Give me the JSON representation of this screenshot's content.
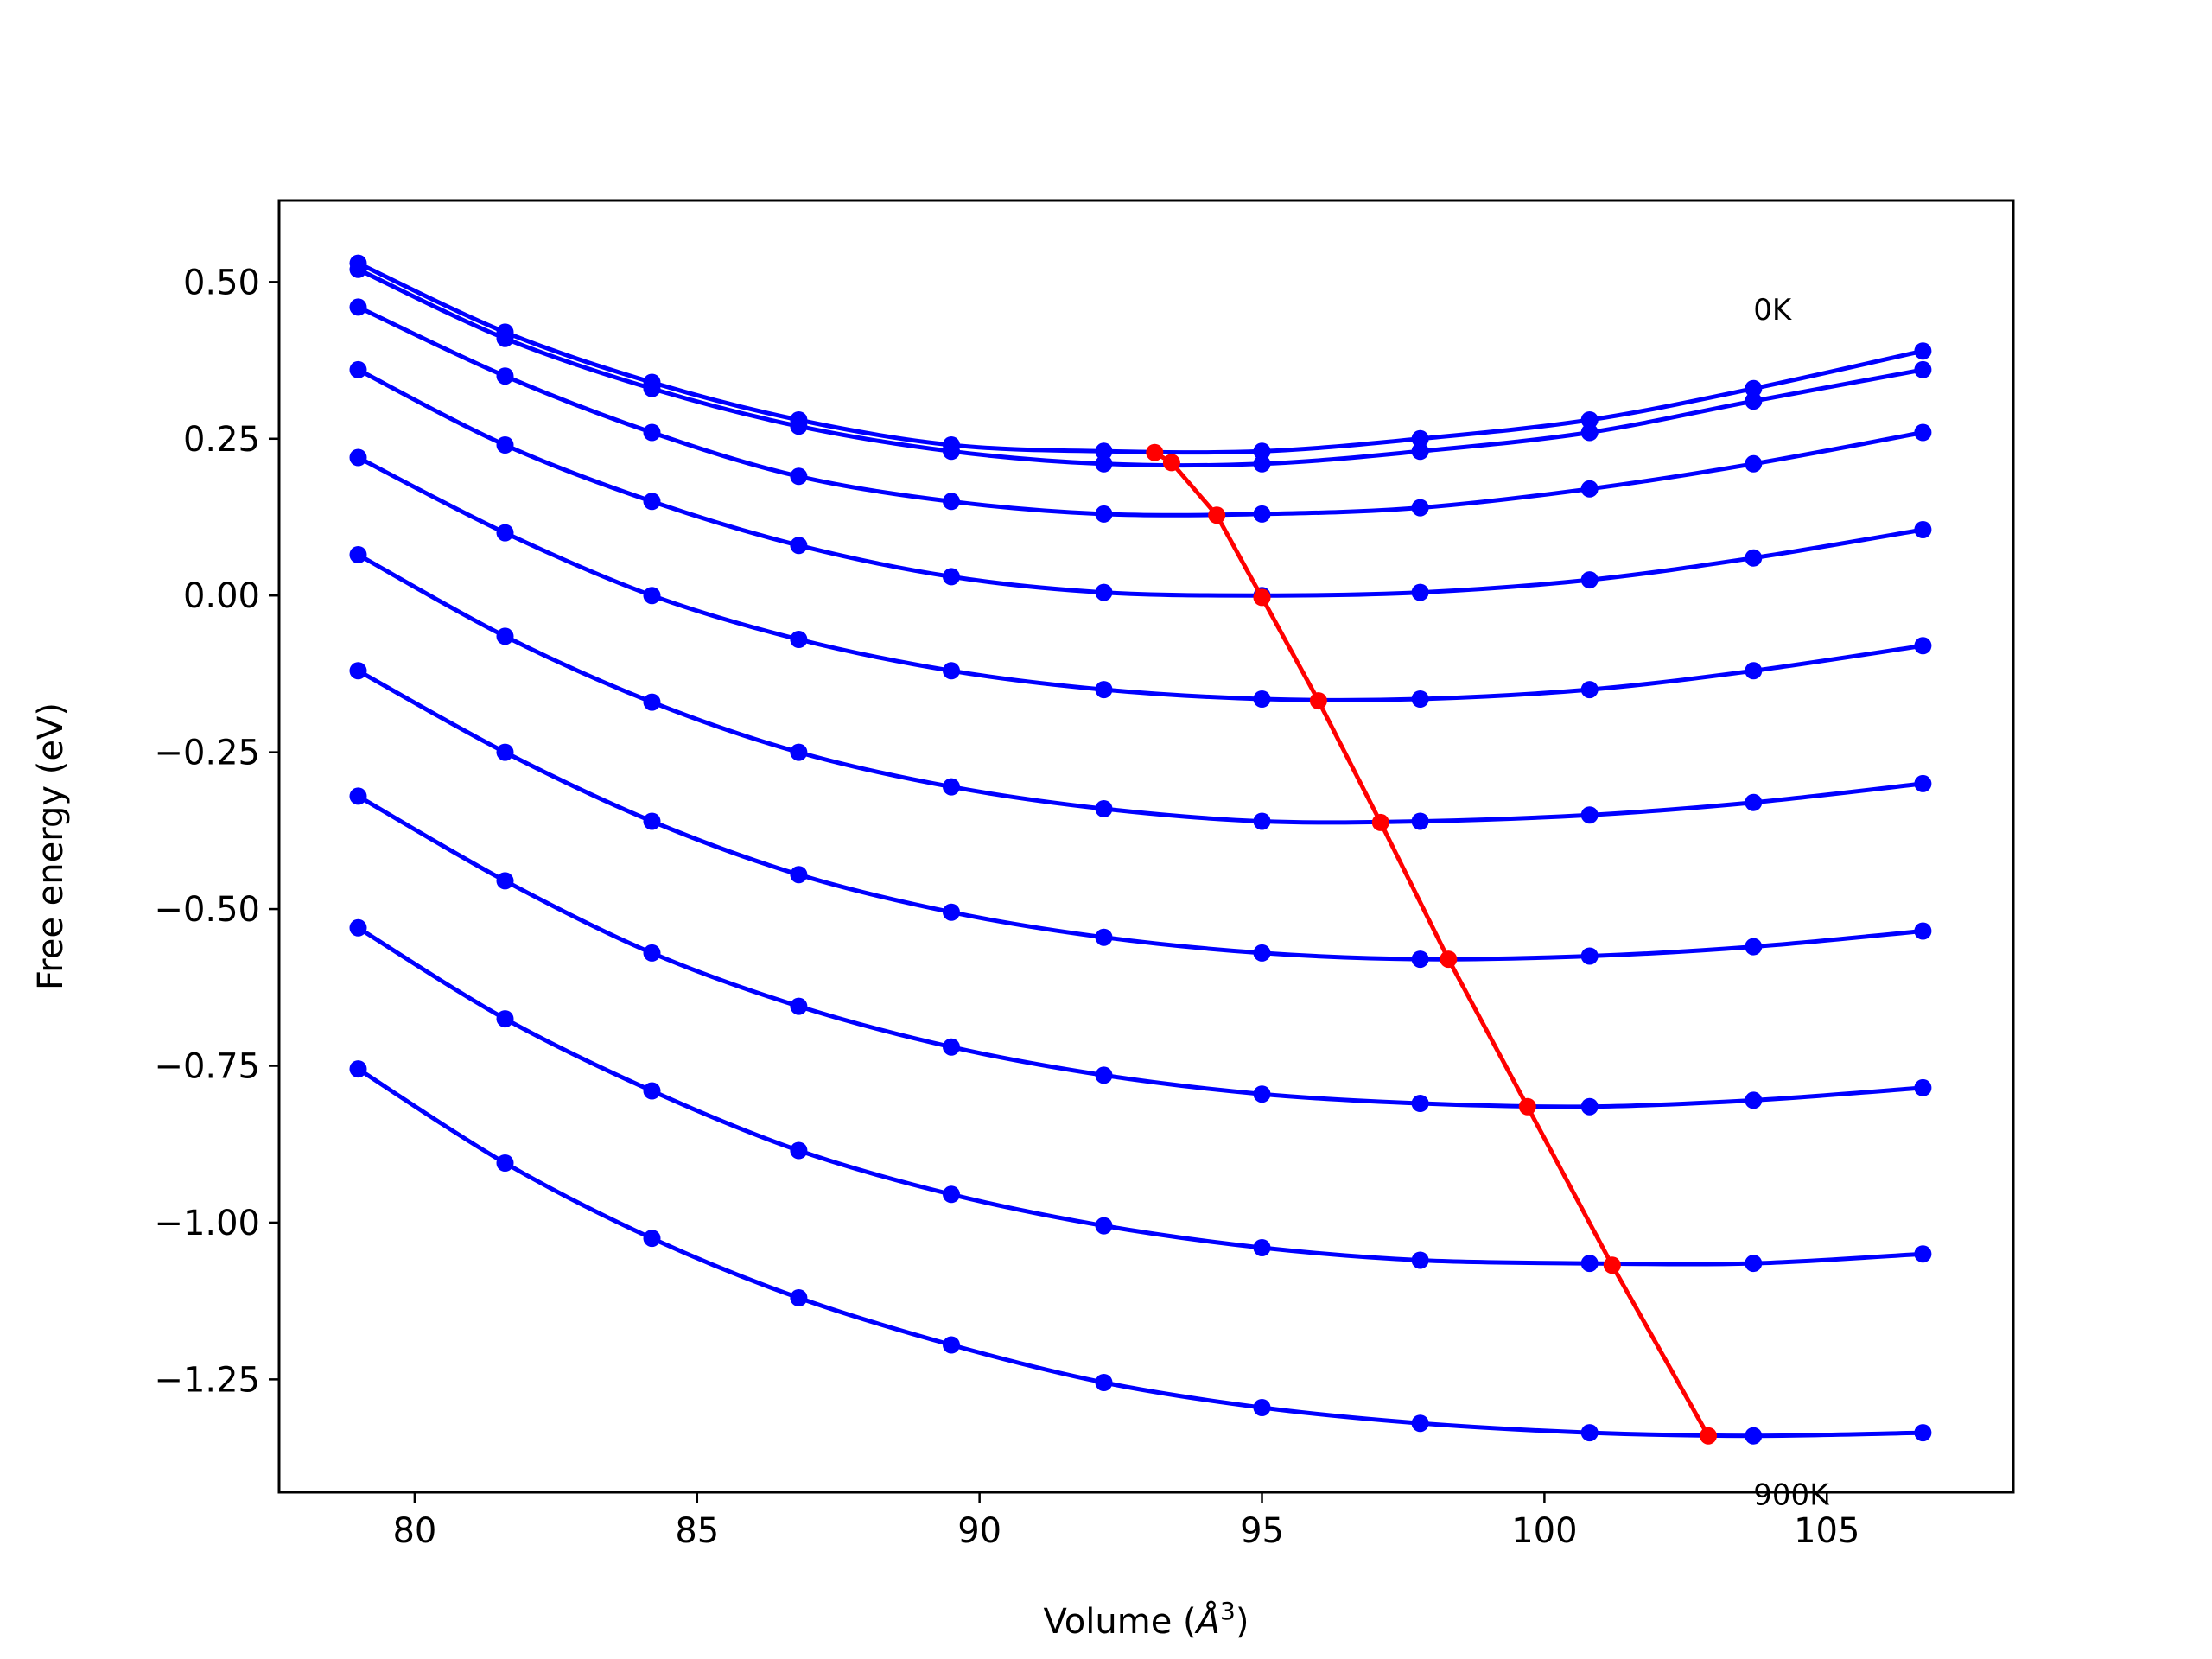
{
  "chart_data": {
    "type": "line",
    "title": "",
    "xlabel": "Volume (",
    "xlabel_unit": "Å",
    "xlabel_exp": "3",
    "xlabel_close": ")",
    "ylabel": "Free energy (eV)",
    "xlim": [
      77.6,
      108.3
    ],
    "ylim": [
      -1.43,
      0.63
    ],
    "xticks": [
      80,
      85,
      90,
      95,
      100,
      105
    ],
    "yticks": [
      -1.25,
      -1.0,
      -0.75,
      -0.5,
      -0.25,
      0.0,
      0.25,
      0.5
    ],
    "ytick_labels": [
      "−1.25",
      "−1.00",
      "−0.75",
      "−0.50",
      "−0.25",
      "0.00",
      "0.25",
      "0.50"
    ],
    "grid": false,
    "legend": "none",
    "colors": {
      "curves": "#0000ff",
      "minima": "#ff0000",
      "frame": "#000000"
    },
    "annotations": [
      {
        "text": "0K",
        "x": 103.7,
        "y": 0.44
      },
      {
        "text": "900K",
        "x": 103.7,
        "y": -1.45
      }
    ],
    "x": [
      79.0,
      81.6,
      84.2,
      86.8,
      89.5,
      92.2,
      95.0,
      97.8,
      100.8,
      103.7,
      106.7
    ],
    "series": [
      {
        "values": [
          0.53,
          0.42,
          0.34,
          0.28,
          0.24,
          0.23,
          0.23,
          0.25,
          0.28,
          0.33,
          0.39
        ]
      },
      {
        "values": [
          0.52,
          0.41,
          0.33,
          0.27,
          0.23,
          0.21,
          0.21,
          0.23,
          0.26,
          0.31,
          0.36
        ]
      },
      {
        "values": [
          0.46,
          0.35,
          0.26,
          0.19,
          0.15,
          0.13,
          0.13,
          0.14,
          0.17,
          0.21,
          0.26
        ]
      },
      {
        "values": [
          0.36,
          0.24,
          0.15,
          0.08,
          0.03,
          0.005,
          0.0,
          0.005,
          0.025,
          0.06,
          0.105
        ]
      },
      {
        "values": [
          0.22,
          0.1,
          0.0,
          -0.07,
          -0.12,
          -0.15,
          -0.165,
          -0.165,
          -0.15,
          -0.12,
          -0.08
        ]
      },
      {
        "values": [
          0.065,
          -0.065,
          -0.17,
          -0.25,
          -0.305,
          -0.34,
          -0.36,
          -0.36,
          -0.35,
          -0.33,
          -0.3
        ]
      },
      {
        "values": [
          -0.12,
          -0.25,
          -0.36,
          -0.445,
          -0.505,
          -0.545,
          -0.57,
          -0.58,
          -0.575,
          -0.56,
          -0.535
        ]
      },
      {
        "values": [
          -0.32,
          -0.455,
          -0.57,
          -0.655,
          -0.72,
          -0.765,
          -0.795,
          -0.81,
          -0.815,
          -0.805,
          -0.785
        ]
      },
      {
        "values": [
          -0.53,
          -0.675,
          -0.79,
          -0.885,
          -0.955,
          -1.005,
          -1.04,
          -1.06,
          -1.065,
          -1.065,
          -1.05
        ]
      },
      {
        "values": [
          -0.755,
          -0.905,
          -1.025,
          -1.12,
          -1.195,
          -1.255,
          -1.295,
          -1.32,
          -1.335,
          -1.34,
          -1.335
        ]
      }
    ],
    "minima": {
      "x": [
        93.1,
        93.4,
        94.2,
        95.0,
        96.0,
        97.1,
        98.3,
        99.7,
        101.2,
        102.9
      ],
      "y": [
        0.228,
        0.212,
        0.128,
        -0.003,
        -0.168,
        -0.362,
        -0.58,
        -0.815,
        -1.068,
        -1.34
      ]
    }
  }
}
